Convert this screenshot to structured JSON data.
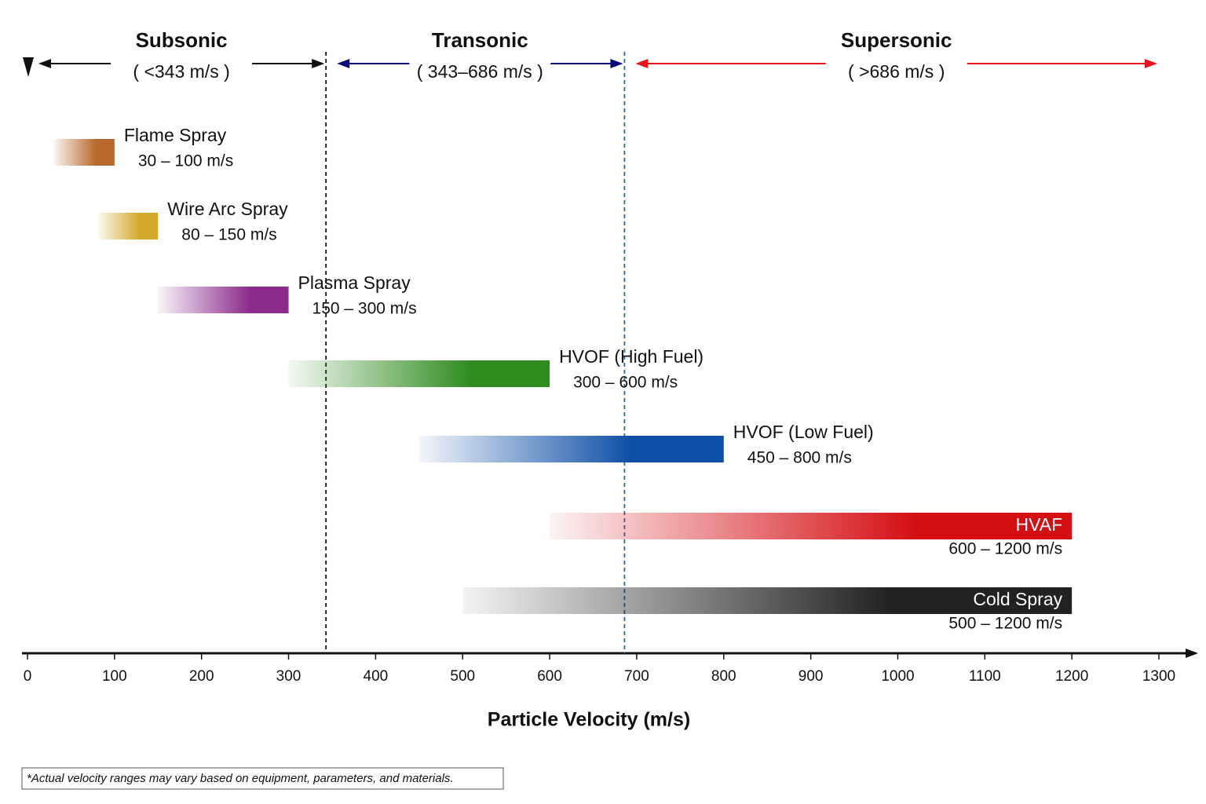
{
  "chart_data": {
    "type": "range-bar",
    "x_label": "Particle Velocity (m/s)",
    "xlim": [
      0,
      1300
    ],
    "xticks": [
      0,
      100,
      200,
      300,
      400,
      500,
      600,
      700,
      800,
      900,
      1000,
      1100,
      1200,
      1300
    ],
    "boundaries": [
      343,
      686
    ],
    "regions": [
      {
        "name": "Subsonic",
        "label": "( <343 m/s )",
        "color": "#111111"
      },
      {
        "name": "Transonic",
        "label": "( 343–686 m/s )",
        "color": "#0a0a7a"
      },
      {
        "name": "Supersonic",
        "label": "( >686 m/s )",
        "color": "#e8141c"
      }
    ],
    "series": [
      {
        "name": "Flame Spray",
        "range_label": "30 – 100 m/s",
        "start": 30,
        "end": 100,
        "color": "#b8682a"
      },
      {
        "name": "Wire Arc Spray",
        "range_label": "80 – 150 m/s",
        "start": 80,
        "end": 150,
        "color": "#d4a82a"
      },
      {
        "name": "Plasma Spray",
        "range_label": "150 – 300 m/s",
        "start": 150,
        "end": 300,
        "color": "#8b2c8c"
      },
      {
        "name": "HVOF (High Fuel)",
        "range_label": "300 – 600 m/s",
        "start": 300,
        "end": 600,
        "color": "#2e8b1e"
      },
      {
        "name": "HVOF (Low Fuel)",
        "range_label": "450 – 800 m/s",
        "start": 450,
        "end": 800,
        "color": "#0d4ea6"
      },
      {
        "name": "HVAF",
        "range_label": "600 – 1200 m/s",
        "start": 600,
        "end": 1200,
        "color": "#d40f14"
      },
      {
        "name": "Cold Spray",
        "range_label": "500 – 1200 m/s",
        "start": 500,
        "end": 1200,
        "color": "#222222"
      }
    ],
    "footnote": "*Actual velocity ranges may vary based on equipment, parameters, and materials."
  }
}
